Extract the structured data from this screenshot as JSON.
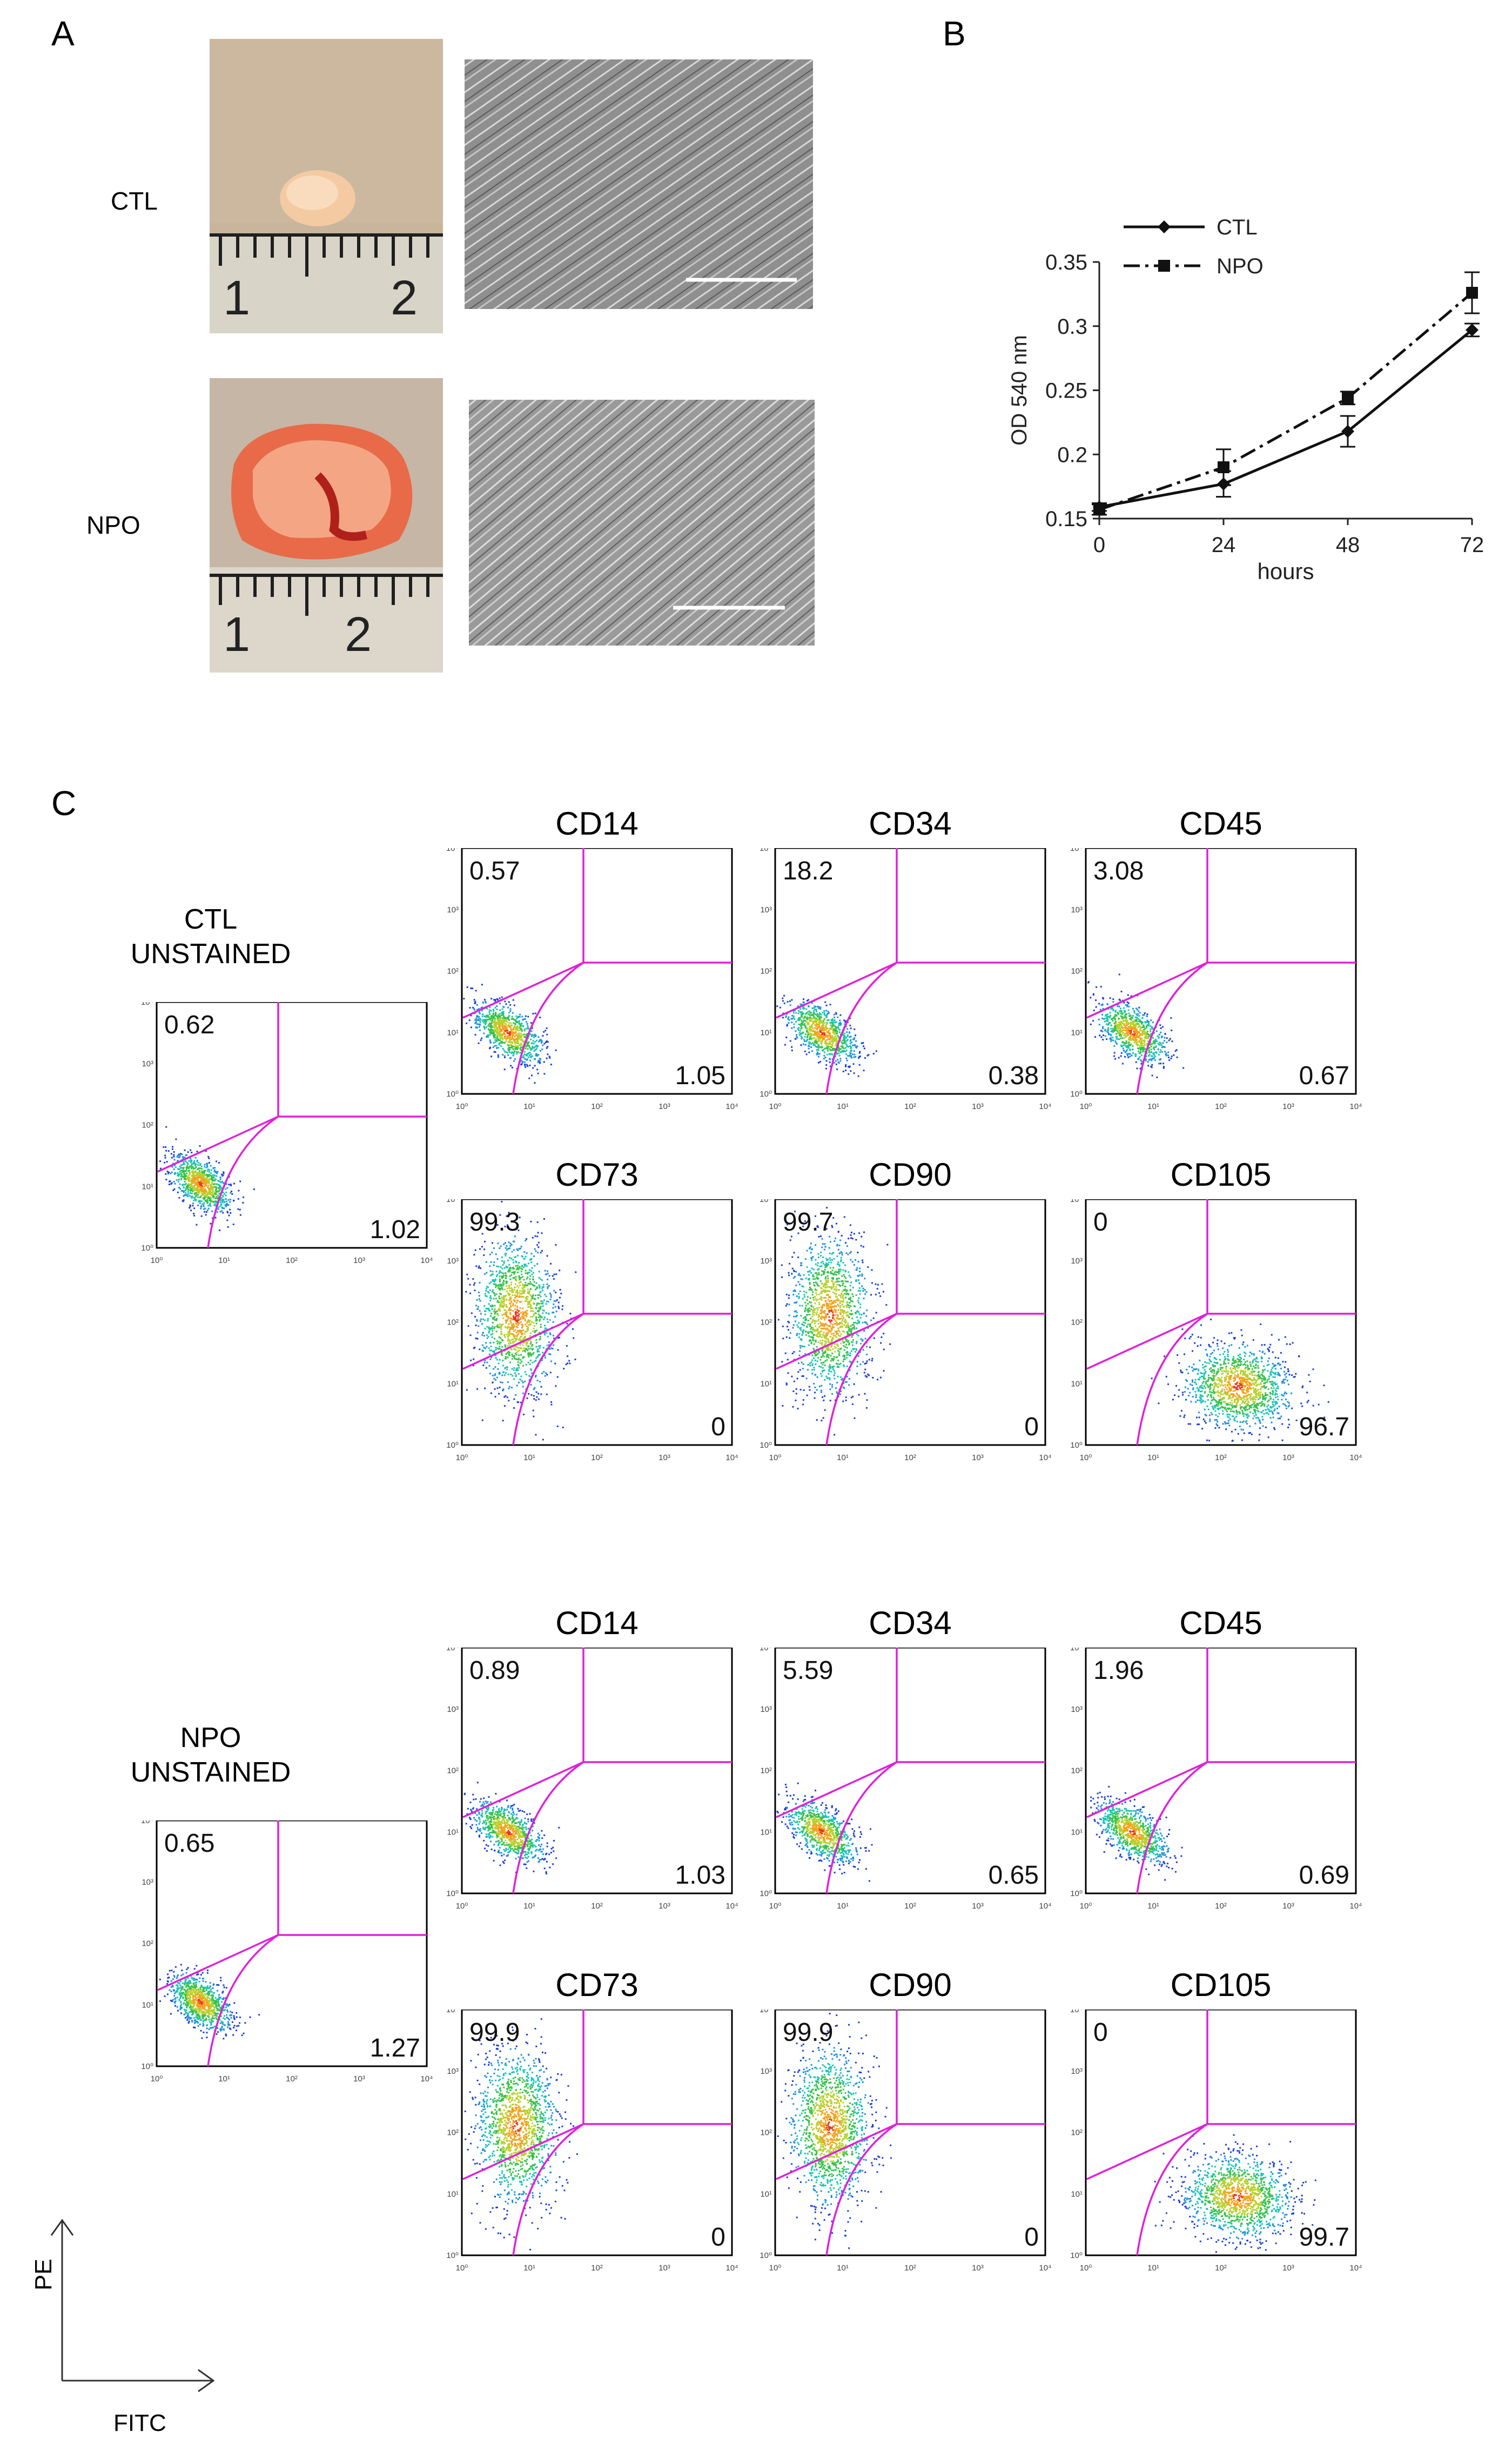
{
  "panels": {
    "a": "A",
    "b": "B",
    "c": "C"
  },
  "panel_a": {
    "row_labels": [
      "CTL",
      "NPO"
    ],
    "ruler_numbers": [
      "1",
      "2"
    ]
  },
  "chart_data": {
    "type": "line",
    "ylabel": "OD 540 nm",
    "xlabel": "hours",
    "x": [
      0,
      24,
      48,
      72
    ],
    "xticks": [
      "0",
      "24",
      "48",
      "72"
    ],
    "yticks": [
      "0.15",
      "0.2",
      "0.25",
      "0.3",
      "0.35"
    ],
    "ylim": [
      0.15,
      0.35
    ],
    "xlim": [
      0,
      72
    ],
    "legend_position": "top-left",
    "series": [
      {
        "name": "CTL",
        "values": [
          0.159,
          0.177,
          0.218,
          0.297
        ],
        "errors": [
          0.003,
          0.01,
          0.012,
          0.005
        ],
        "style": "solid",
        "marker": "diamond"
      },
      {
        "name": "NPO",
        "values": [
          0.157,
          0.19,
          0.244,
          0.326
        ],
        "errors": [
          0.004,
          0.014,
          0.005,
          0.016
        ],
        "style": "dash-dot",
        "marker": "square"
      }
    ]
  },
  "flow": {
    "axis_ticks": [
      "10⁰",
      "10¹",
      "10²",
      "10³",
      "10⁴"
    ],
    "axes": {
      "y": "PE",
      "x": "FITC"
    },
    "groups": [
      {
        "unstained_title": [
          "CTL",
          "UNSTAINED"
        ],
        "unstained": {
          "ul": "0.62",
          "lr": "1.02"
        },
        "plots": [
          {
            "marker": "CD14",
            "ul": "0.57",
            "lr": "1.05"
          },
          {
            "marker": "CD34",
            "ul": "18.2",
            "lr": "0.38"
          },
          {
            "marker": "CD45",
            "ul": "3.08",
            "lr": "0.67"
          },
          {
            "marker": "CD73",
            "ul": "99.3",
            "lr": "0"
          },
          {
            "marker": "CD90",
            "ul": "99.7",
            "lr": "0"
          },
          {
            "marker": "CD105",
            "ul": "0",
            "lr": "96.7"
          }
        ]
      },
      {
        "unstained_title": [
          "NPO",
          "UNSTAINED"
        ],
        "unstained": {
          "ul": "0.65",
          "lr": "1.27"
        },
        "plots": [
          {
            "marker": "CD14",
            "ul": "0.89",
            "lr": "1.03"
          },
          {
            "marker": "CD34",
            "ul": "5.59",
            "lr": "0.65"
          },
          {
            "marker": "CD45",
            "ul": "1.96",
            "lr": "0.69"
          },
          {
            "marker": "CD73",
            "ul": "99.9",
            "lr": "0"
          },
          {
            "marker": "CD90",
            "ul": "99.9",
            "lr": "0"
          },
          {
            "marker": "CD105",
            "ul": "0",
            "lr": "99.7"
          }
        ]
      }
    ]
  }
}
